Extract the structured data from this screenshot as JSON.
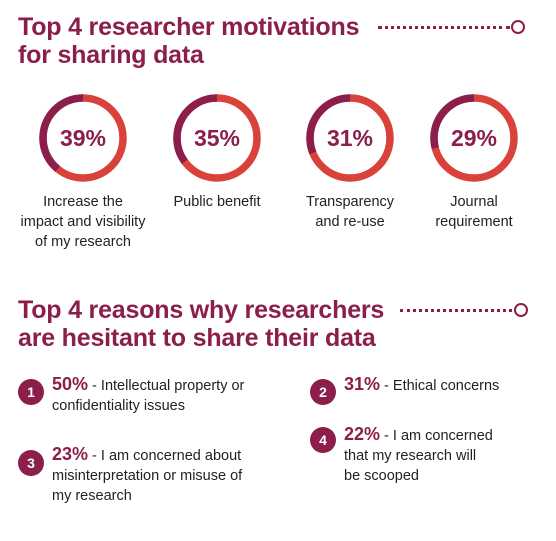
{
  "motivations": {
    "heading_line1": "Top 4 researcher motivations",
    "heading_line2": "for sharing data"
  },
  "reasons": {
    "heading_line1": "Top 4 reasons why researchers",
    "heading_line2": "are hesitant to share their data",
    "items": [
      {
        "number": "1",
        "percent": "50%",
        "sep": " - ",
        "lines": [
          "Intellectual property or",
          "confidentiality issues"
        ]
      },
      {
        "number": "2",
        "percent": "31%",
        "sep": " - ",
        "lines": [
          "Ethical concerns"
        ]
      },
      {
        "number": "3",
        "percent": "23%",
        "sep": " - ",
        "lines": [
          "I am concerned about",
          "misinterpretation or misuse of",
          "my research"
        ]
      },
      {
        "number": "4",
        "percent": "22%",
        "sep": " - ",
        "lines": [
          "I am concerned",
          "that my research will",
          "be scooped"
        ]
      }
    ]
  },
  "colors": {
    "accent": "#8b1e4a",
    "ring": "#d9423a",
    "text": "#222222"
  },
  "chart_data": [
    {
      "type": "pie",
      "title": "Top 4 researcher motivations for sharing data",
      "categories": [
        "Increase the impact and visibility of my research",
        "Public benefit",
        "Transparency and re-use",
        "Journal requirement"
      ],
      "category_lines": [
        [
          "Increase the",
          "impact and visibility",
          "of my research"
        ],
        [
          "Public benefit"
        ],
        [
          "Transparency",
          "and re-use"
        ],
        [
          "Journal",
          "requirement"
        ]
      ],
      "values": [
        39,
        35,
        31,
        29
      ],
      "value_labels": [
        "39%",
        "35%",
        "31%",
        "29%"
      ]
    }
  ]
}
